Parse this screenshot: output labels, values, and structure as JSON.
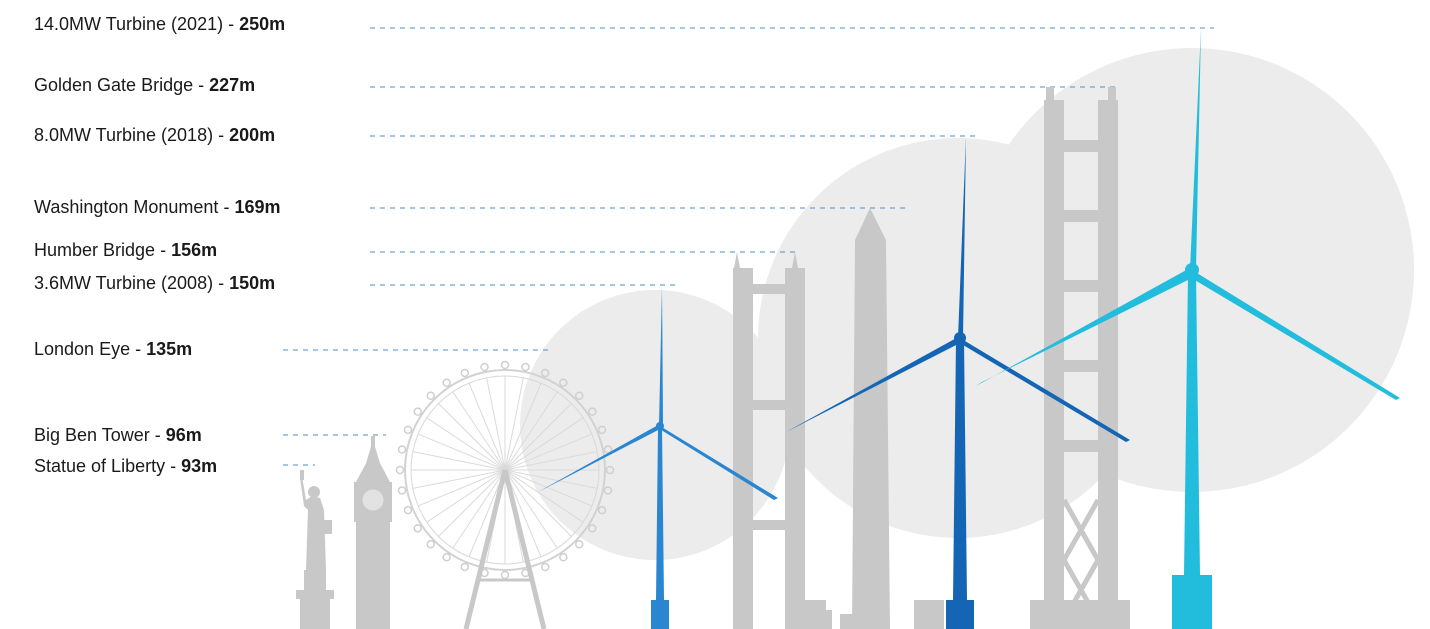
{
  "labels": [
    {
      "name": "14.0MW Turbine (2021)",
      "sep": " - ",
      "value": "250m"
    },
    {
      "name": "Golden Gate Bridge",
      "sep": " - ",
      "value": "227m"
    },
    {
      "name": "8.0MW Turbine (2018)",
      "sep": " - ",
      "value": "200m"
    },
    {
      "name": "Washington Monument",
      "sep": " - ",
      "value": "169m"
    },
    {
      "name": "Humber Bridge",
      "sep": " - ",
      "value": "156m"
    },
    {
      "name": "3.6MW Turbine (2008)",
      "sep": " - ",
      "value": "150m"
    },
    {
      "name": "London Eye",
      "sep": " - ",
      "value": "135m"
    },
    {
      "name": "Big Ben Tower",
      "sep": " - ",
      "value": "96m"
    },
    {
      "name": "Statue of Liberty",
      "sep": " - ",
      "value": "93m"
    }
  ],
  "colors": {
    "landmark": "#c8c8c8",
    "circle": "#ececec",
    "leader": "#4a90c8",
    "turbine_small": "#2a86d0",
    "turbine_mid": "#1466b4",
    "turbine_large": "#22bcdc"
  }
}
